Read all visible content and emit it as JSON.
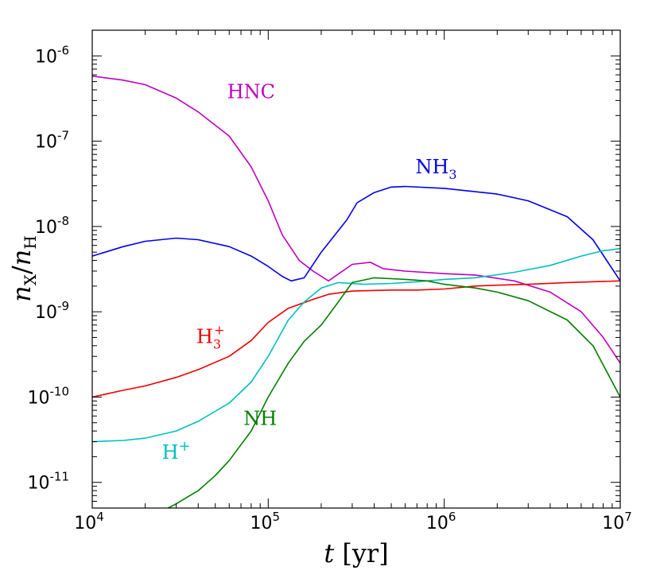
{
  "chart_data": {
    "type": "line",
    "title": "",
    "xlabel": "t [yr]",
    "ylabel": "n_X / n_H",
    "xscale": "log",
    "yscale": "log",
    "xlim": [
      10000,
      10000000
    ],
    "ylim": [
      5e-12,
      2e-06
    ],
    "grid": false,
    "x_ticks": [
      {
        "base": "10",
        "exp": "4",
        "value": 10000
      },
      {
        "base": "10",
        "exp": "5",
        "value": 100000
      },
      {
        "base": "10",
        "exp": "6",
        "value": 1000000
      },
      {
        "base": "10",
        "exp": "7",
        "value": 10000000
      }
    ],
    "y_ticks": [
      {
        "base": "10",
        "exp": "-11",
        "value": 1e-11
      },
      {
        "base": "10",
        "exp": "-10",
        "value": 1e-10
      },
      {
        "base": "10",
        "exp": "-9",
        "value": 1e-09
      },
      {
        "base": "10",
        "exp": "-8",
        "value": 1e-08
      },
      {
        "base": "10",
        "exp": "-7",
        "value": 1e-07
      },
      {
        "base": "10",
        "exp": "-6",
        "value": 1e-06
      }
    ],
    "series": [
      {
        "name": "HNC",
        "label_main": "HNC",
        "label_sub": "",
        "label_sup": "",
        "color": "#bf00bf",
        "label_at": [
          80000,
          3.2e-07
        ],
        "points": [
          [
            10000,
            5.8e-07
          ],
          [
            15000,
            5.2e-07
          ],
          [
            20000,
            4.6e-07
          ],
          [
            30000,
            3.2e-07
          ],
          [
            40000,
            2.2e-07
          ],
          [
            60000,
            1.15e-07
          ],
          [
            80000,
            5e-08
          ],
          [
            100000,
            2e-08
          ],
          [
            120000,
            8e-09
          ],
          [
            150000,
            4e-09
          ],
          [
            180000,
            3e-09
          ],
          [
            220000,
            2.3e-09
          ],
          [
            300000,
            3.6e-09
          ],
          [
            380000,
            3.8e-09
          ],
          [
            450000,
            3.2e-09
          ],
          [
            600000,
            3e-09
          ],
          [
            1000000,
            2.8e-09
          ],
          [
            1500000,
            2.7e-09
          ],
          [
            2500000,
            2.3e-09
          ],
          [
            4000000,
            1.7e-09
          ],
          [
            6000000,
            1e-09
          ],
          [
            8000000,
            5e-10
          ],
          [
            10000000,
            2.5e-10
          ]
        ]
      },
      {
        "name": "NH3",
        "label_main": "NH",
        "label_sub": "3",
        "label_sup": "",
        "color": "#0000ee",
        "label_at": [
          900000,
          4.2e-08
        ],
        "points": [
          [
            10000,
            4.5e-09
          ],
          [
            15000,
            5.8e-09
          ],
          [
            20000,
            6.7e-09
          ],
          [
            30000,
            7.3e-09
          ],
          [
            40000,
            7e-09
          ],
          [
            60000,
            5.8e-09
          ],
          [
            80000,
            4.5e-09
          ],
          [
            100000,
            3.4e-09
          ],
          [
            120000,
            2.6e-09
          ],
          [
            135000,
            2.3e-09
          ],
          [
            160000,
            2.5e-09
          ],
          [
            200000,
            5e-09
          ],
          [
            280000,
            1.2e-08
          ],
          [
            320000,
            1.9e-08
          ],
          [
            400000,
            2.5e-08
          ],
          [
            500000,
            2.9e-08
          ],
          [
            600000,
            2.95e-08
          ],
          [
            1000000,
            2.8e-08
          ],
          [
            2000000,
            2.4e-08
          ],
          [
            3000000,
            2e-08
          ],
          [
            5000000,
            1.3e-08
          ],
          [
            7000000,
            7e-09
          ],
          [
            10000000,
            2.3e-09
          ]
        ]
      },
      {
        "name": "H3+",
        "label_main": "H",
        "label_sub": "3",
        "label_sup": "+",
        "color": "#ee0000",
        "label_at": [
          47000,
          4.3e-10
        ],
        "points": [
          [
            10000,
            1e-10
          ],
          [
            15000,
            1.2e-10
          ],
          [
            20000,
            1.35e-10
          ],
          [
            30000,
            1.7e-10
          ],
          [
            40000,
            2.1e-10
          ],
          [
            60000,
            3e-10
          ],
          [
            80000,
            4.6e-10
          ],
          [
            100000,
            7.5e-10
          ],
          [
            130000,
            1.1e-09
          ],
          [
            180000,
            1.4e-09
          ],
          [
            220000,
            1.6e-09
          ],
          [
            300000,
            1.75e-09
          ],
          [
            500000,
            1.8e-09
          ],
          [
            700000,
            1.8e-09
          ],
          [
            1000000,
            1.85e-09
          ],
          [
            1500000,
            2e-09
          ],
          [
            2000000,
            2.05e-09
          ],
          [
            3000000,
            2.1e-09
          ],
          [
            5000000,
            2.2e-09
          ],
          [
            10000000,
            2.3e-09
          ]
        ]
      },
      {
        "name": "H+",
        "label_main": "H",
        "label_sub": "",
        "label_sup": "+",
        "color": "#00bfbf",
        "label_at": [
          30000,
          1.9e-11
        ],
        "points": [
          [
            10000,
            3e-11
          ],
          [
            15000,
            3.1e-11
          ],
          [
            20000,
            3.3e-11
          ],
          [
            30000,
            4e-11
          ],
          [
            40000,
            5.2e-11
          ],
          [
            60000,
            8.5e-11
          ],
          [
            80000,
            1.5e-10
          ],
          [
            100000,
            3e-10
          ],
          [
            130000,
            8e-10
          ],
          [
            160000,
            1.3e-09
          ],
          [
            200000,
            1.9e-09
          ],
          [
            250000,
            2.2e-09
          ],
          [
            350000,
            2.1e-09
          ],
          [
            500000,
            2.15e-09
          ],
          [
            700000,
            2.25e-09
          ],
          [
            1000000,
            2.4e-09
          ],
          [
            1500000,
            2.5e-09
          ],
          [
            2500000,
            2.9e-09
          ],
          [
            4000000,
            3.5e-09
          ],
          [
            6000000,
            4.5e-09
          ],
          [
            8000000,
            5.2e-09
          ],
          [
            10000000,
            5.5e-09
          ]
        ]
      },
      {
        "name": "NH",
        "label_main": "NH",
        "label_sub": "",
        "label_sup": "",
        "color": "#007f00",
        "label_at": [
          90000,
          4.7e-11
        ],
        "points": [
          [
            27000,
            5e-12
          ],
          [
            30000,
            5.6e-12
          ],
          [
            40000,
            8e-12
          ],
          [
            50000,
            1.2e-11
          ],
          [
            60000,
            1.8e-11
          ],
          [
            80000,
            4e-11
          ],
          [
            100000,
            1e-10
          ],
          [
            130000,
            2.5e-10
          ],
          [
            160000,
            4.5e-10
          ],
          [
            200000,
            7e-10
          ],
          [
            250000,
            1.3e-09
          ],
          [
            300000,
            2.2e-09
          ],
          [
            400000,
            2.5e-09
          ],
          [
            600000,
            2.4e-09
          ],
          [
            800000,
            2.3e-09
          ],
          [
            1000000,
            2.1e-09
          ],
          [
            1500000,
            1.9e-09
          ],
          [
            2000000,
            1.7e-09
          ],
          [
            3000000,
            1.35e-09
          ],
          [
            5000000,
            8e-10
          ],
          [
            7000000,
            4e-10
          ],
          [
            10000000,
            1e-10
          ]
        ]
      }
    ]
  }
}
